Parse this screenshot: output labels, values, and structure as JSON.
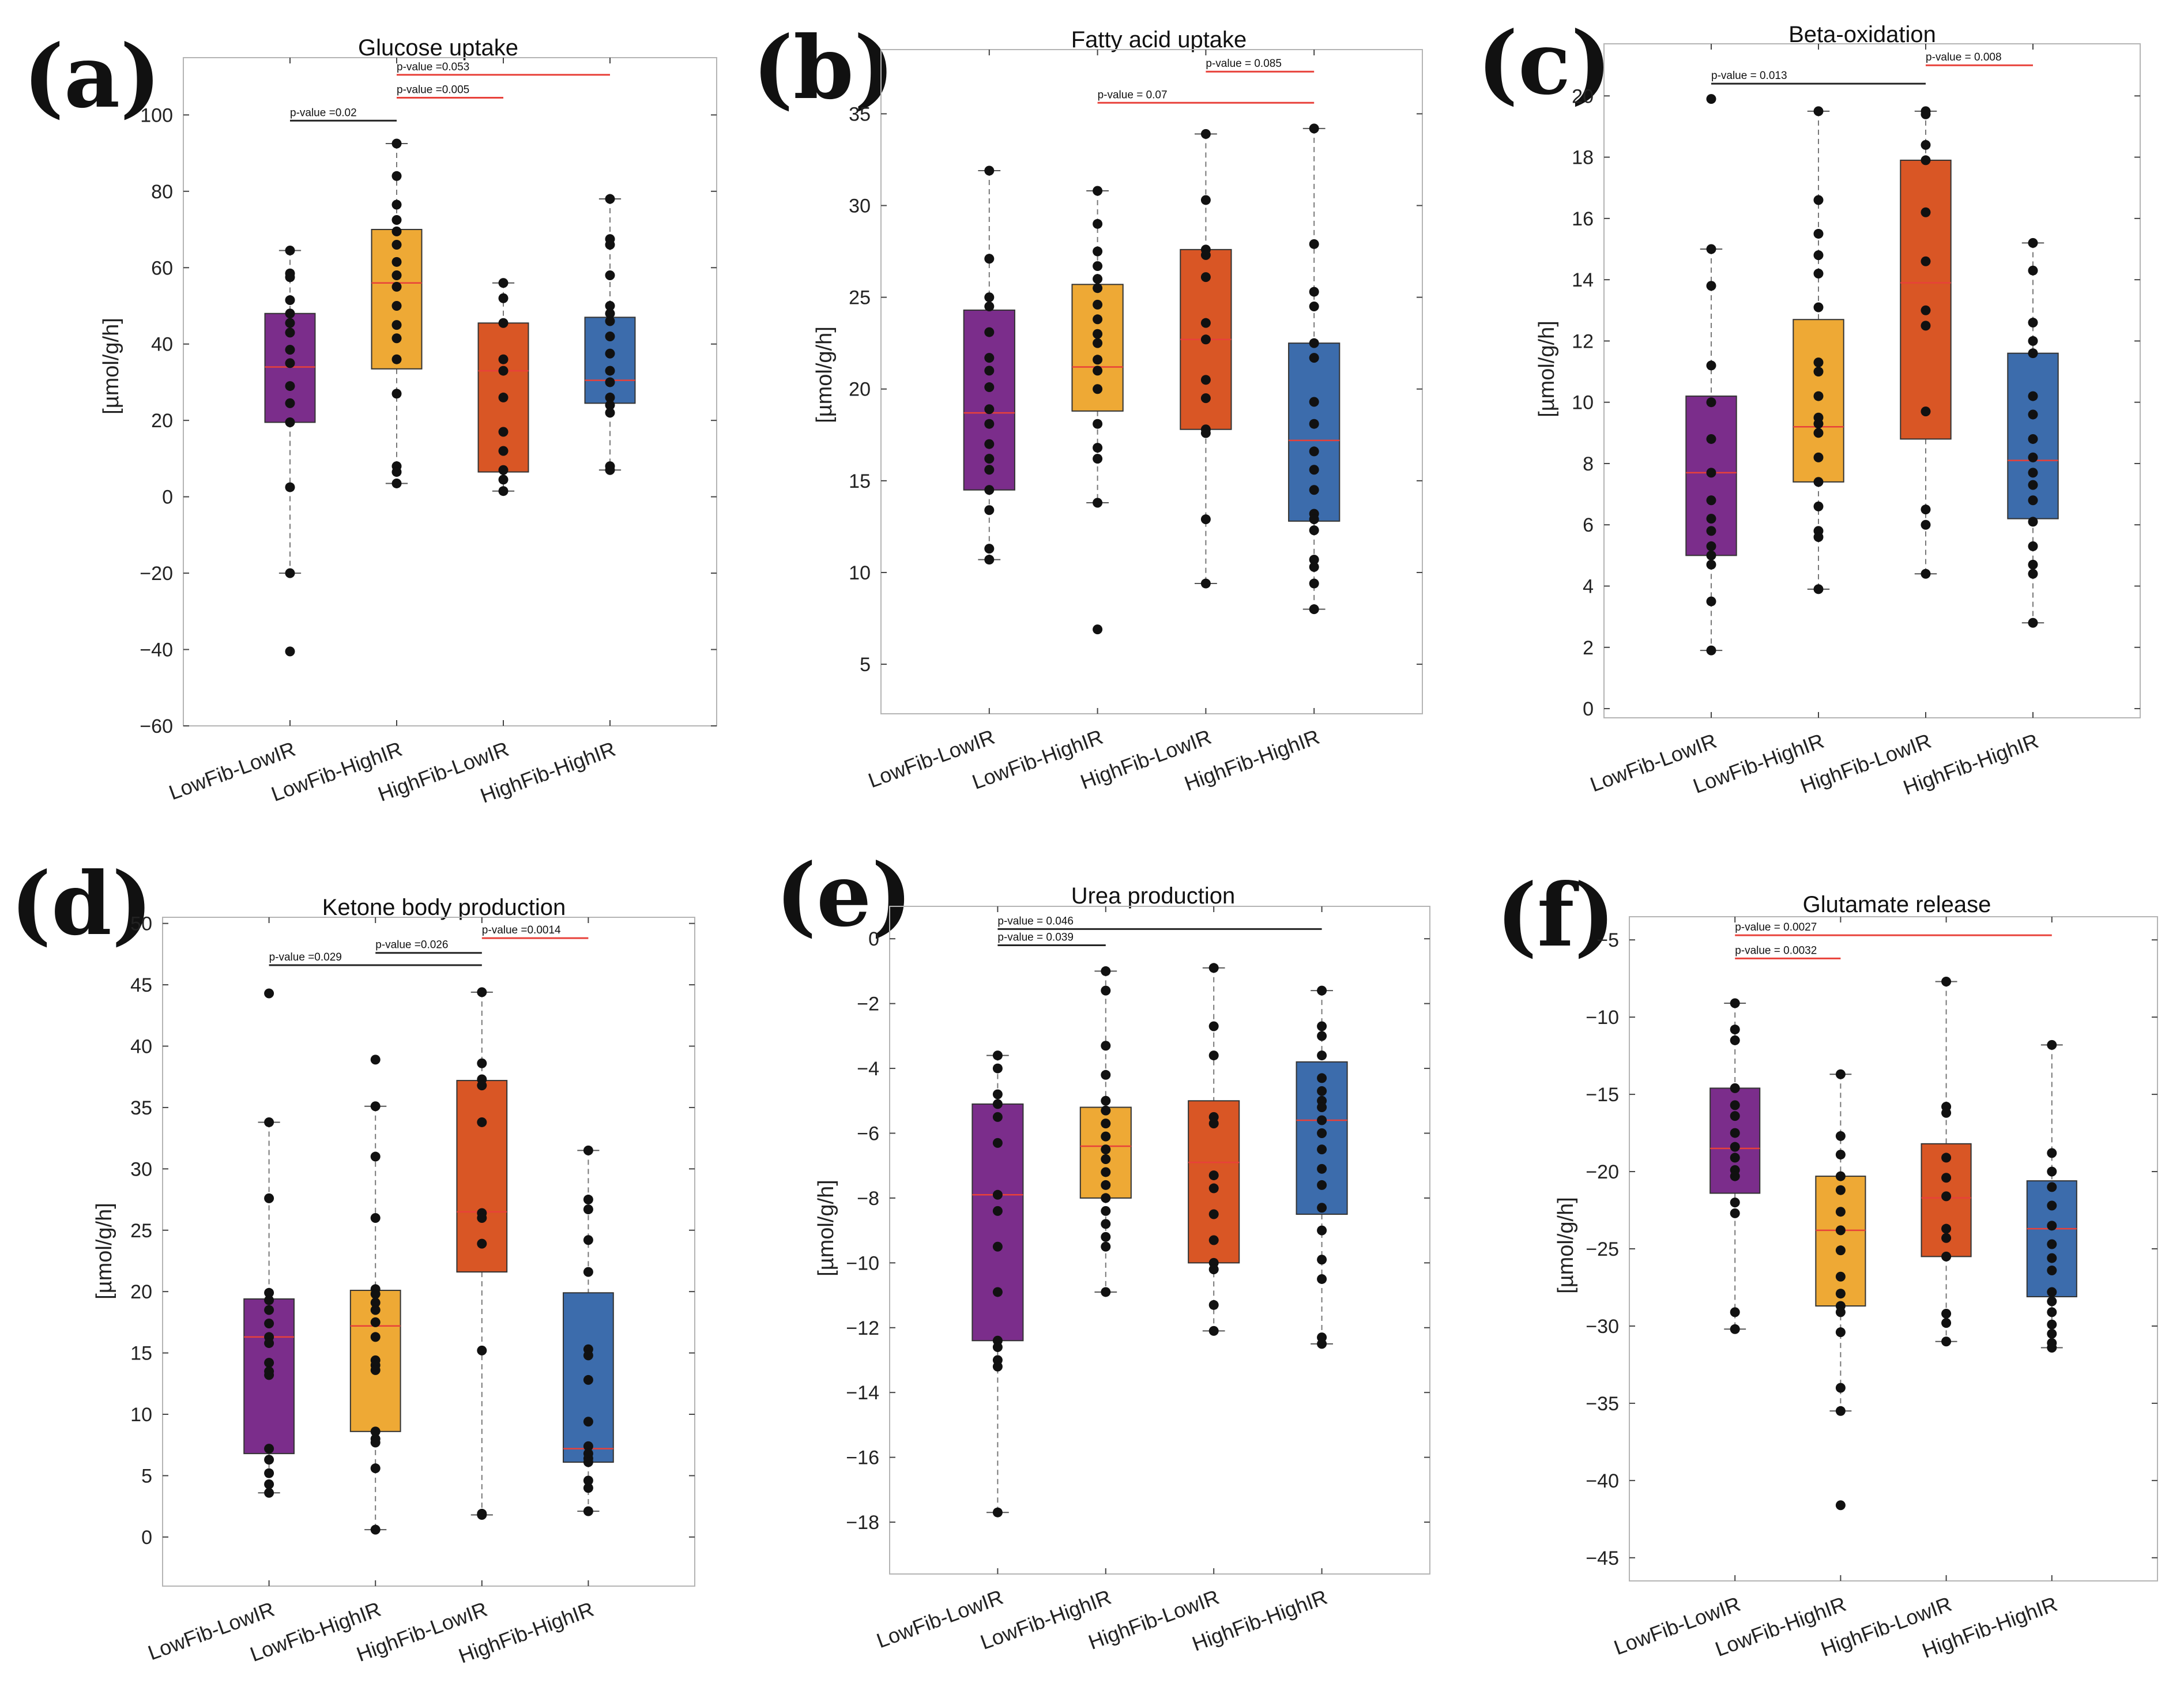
{
  "chart_data": [
    {
      "panel": "(a)",
      "type": "box",
      "title": "Glucose uptake",
      "ylabel": "[µmol/g/h]",
      "ylim": [
        -60,
        115
      ],
      "yticks": [
        -60,
        -40,
        -20,
        0,
        20,
        40,
        60,
        80,
        100
      ],
      "categories": [
        "LowFib-LowIR",
        "LowFib-HighIR",
        "HighFib-LowIR",
        "HighFib-HighIR"
      ],
      "boxes": [
        {
          "q1": 19.5,
          "median": 34,
          "q3": 48,
          "whisker_low": -20,
          "whisker_high": 64.5,
          "points": [
            64.5,
            58.5,
            57.5,
            51.5,
            48,
            45.5,
            43,
            38.5,
            35,
            29,
            24.5,
            19.5,
            2.5,
            -20,
            -40.5
          ]
        },
        {
          "q1": 33.5,
          "median": 56,
          "q3": 70,
          "whisker_low": 3.5,
          "whisker_high": 92.5,
          "points": [
            92.5,
            84,
            76.5,
            72.5,
            69.5,
            66,
            61.5,
            58,
            55,
            50,
            45,
            41.5,
            36,
            27,
            8,
            6.5,
            3.5
          ]
        },
        {
          "q1": 6.5,
          "median": 33,
          "q3": 45.5,
          "whisker_low": 1.5,
          "whisker_high": 56,
          "points": [
            56,
            52,
            45.5,
            36,
            33,
            26,
            17,
            12,
            7,
            4.5,
            1.5
          ]
        },
        {
          "q1": 24.5,
          "median": 30.5,
          "q3": 47,
          "whisker_low": 7,
          "whisker_high": 78,
          "points": [
            78,
            67.5,
            66,
            58,
            50,
            48,
            46,
            42,
            37.5,
            33,
            30,
            26,
            24,
            22,
            8,
            7
          ]
        }
      ],
      "comparisons": [
        {
          "label": "p-value =0.02",
          "from": 0,
          "to": 1,
          "y": 98.5,
          "color": "#222222"
        },
        {
          "label": "p-value =0.005",
          "from": 1,
          "to": 2,
          "y": 104.5,
          "color": "#e8413a"
        },
        {
          "label": "p-value =0.053",
          "from": 1,
          "to": 3,
          "y": 110.5,
          "color": "#e8413a"
        }
      ]
    },
    {
      "panel": "(b)",
      "type": "box",
      "title": "Fatty acid uptake",
      "ylabel": "[µmol/g/h]",
      "ylim": [
        2.3,
        38.5
      ],
      "yticks": [
        5,
        10,
        15,
        20,
        25,
        30,
        35
      ],
      "categories": [
        "LowFib-LowIR",
        "LowFib-HighIR",
        "HighFib-LowIR",
        "HighFib-HighIR"
      ],
      "boxes": [
        {
          "q1": 14.5,
          "median": 18.7,
          "q3": 24.3,
          "whisker_low": 10.7,
          "whisker_high": 31.9,
          "points": [
            31.9,
            27.1,
            25,
            24.5,
            23.1,
            21.7,
            21,
            20.1,
            18.9,
            18.1,
            17,
            16.2,
            15.6,
            14.5,
            13.4,
            11.3,
            10.7
          ]
        },
        {
          "q1": 18.8,
          "median": 21.2,
          "q3": 25.7,
          "whisker_low": 13.8,
          "whisker_high": 30.8,
          "points": [
            30.8,
            29,
            27.5,
            26.7,
            26,
            25.5,
            24.6,
            23.8,
            23,
            22.5,
            21.6,
            21,
            20,
            18.1,
            16.8,
            16.2,
            13.8,
            6.9
          ]
        },
        {
          "q1": 17.8,
          "median": 22.7,
          "q3": 27.6,
          "whisker_low": 9.4,
          "whisker_high": 33.9,
          "points": [
            33.9,
            30.3,
            27.6,
            27.3,
            26.1,
            23.6,
            22.7,
            20.5,
            19.5,
            17.8,
            17.6,
            12.9,
            9.4
          ]
        },
        {
          "q1": 12.8,
          "median": 17.2,
          "q3": 22.5,
          "whisker_low": 8,
          "whisker_high": 34.2,
          "points": [
            34.2,
            27.9,
            25.3,
            24.5,
            22.5,
            21.7,
            19.3,
            18.1,
            16.6,
            15.6,
            14.5,
            13.2,
            12.9,
            12.3,
            10.7,
            10.3,
            9.4,
            8
          ]
        }
      ],
      "comparisons": [
        {
          "label": "p-value = 0.07",
          "from": 1,
          "to": 3,
          "y": 35.6,
          "color": "#e8413a"
        },
        {
          "label": "p-value = 0.085",
          "from": 2,
          "to": 3,
          "y": 37.3,
          "color": "#e8413a"
        }
      ]
    },
    {
      "panel": "(c)",
      "type": "box",
      "title": "Beta-oxidation",
      "ylabel": "[µmol/g/h]",
      "ylim": [
        -0.3,
        21.7
      ],
      "yticks": [
        0,
        2,
        4,
        6,
        8,
        10,
        12,
        14,
        16,
        18,
        20
      ],
      "categories": [
        "LowFib-LowIR",
        "LowFib-HighIR",
        "HighFib-LowIR",
        "HighFib-HighIR"
      ],
      "boxes": [
        {
          "q1": 5,
          "median": 7.7,
          "q3": 10.2,
          "whisker_low": 1.9,
          "whisker_high": 15,
          "points": [
            19.9,
            15,
            13.8,
            11.2,
            10,
            8.8,
            7.7,
            6.8,
            6.2,
            5.8,
            5.3,
            5,
            4.7,
            3.5,
            1.9
          ]
        },
        {
          "q1": 7.4,
          "median": 9.2,
          "q3": 12.7,
          "whisker_low": 3.9,
          "whisker_high": 19.5,
          "points": [
            19.5,
            16.6,
            15.5,
            14.8,
            14.2,
            13.1,
            11.3,
            11,
            10.2,
            9.5,
            9.3,
            9,
            8.2,
            7.4,
            6.6,
            5.8,
            5.6,
            3.9
          ]
        },
        {
          "q1": 8.8,
          "median": 13.9,
          "q3": 17.9,
          "whisker_low": 4.4,
          "whisker_high": 19.5,
          "points": [
            19.5,
            19.4,
            18.4,
            17.9,
            16.2,
            14.6,
            13,
            12.5,
            9.7,
            6.5,
            6,
            4.4
          ]
        },
        {
          "q1": 6.2,
          "median": 8.1,
          "q3": 11.6,
          "whisker_low": 2.8,
          "whisker_high": 15.2,
          "points": [
            15.2,
            14.3,
            12.6,
            12,
            11.6,
            10.2,
            9.6,
            8.8,
            8.2,
            7.7,
            7.3,
            6.8,
            6.1,
            5.3,
            4.7,
            4.4,
            2.8
          ]
        }
      ],
      "comparisons": [
        {
          "label": "p-value = 0.013",
          "from": 0,
          "to": 2,
          "y": 20.4,
          "color": "#222222"
        },
        {
          "label": "p-value = 0.008",
          "from": 2,
          "to": 3,
          "y": 21,
          "color": "#e8413a"
        }
      ]
    },
    {
      "panel": "(d)",
      "type": "box",
      "title": "Ketone body production",
      "ylabel": "[µmol/g/h]",
      "ylim": [
        -4,
        50.5
      ],
      "yticks": [
        0,
        5,
        10,
        15,
        20,
        25,
        30,
        35,
        40,
        45,
        50
      ],
      "categories": [
        "LowFib-LowIR",
        "LowFib-HighIR",
        "HighFib-LowIR",
        "HighFib-HighIR"
      ],
      "boxes": [
        {
          "q1": 6.8,
          "median": 16.3,
          "q3": 19.4,
          "whisker_low": 3.6,
          "whisker_high": 33.8,
          "points": [
            44.3,
            33.8,
            27.6,
            19.9,
            19.3,
            18.5,
            17.4,
            16.3,
            15.8,
            14.2,
            13.5,
            13.2,
            7.2,
            6.3,
            5.2,
            4.3,
            3.6
          ]
        },
        {
          "q1": 8.6,
          "median": 17.2,
          "q3": 20.1,
          "whisker_low": 0.6,
          "whisker_high": 35.1,
          "points": [
            38.9,
            35.1,
            31,
            26,
            20.2,
            19.8,
            19.1,
            18.5,
            17.5,
            16.3,
            14.4,
            14,
            13.6,
            8.6,
            8,
            7.7,
            5.6,
            0.6
          ]
        },
        {
          "q1": 21.6,
          "median": 26.5,
          "q3": 37.2,
          "whisker_low": 1.8,
          "whisker_high": 44.4,
          "points": [
            44.4,
            38.6,
            37.3,
            36.8,
            33.8,
            26.4,
            26,
            23.9,
            15.2,
            1.9,
            1.8
          ]
        },
        {
          "q1": 6.1,
          "median": 7.2,
          "q3": 19.9,
          "whisker_low": 2.1,
          "whisker_high": 31.5,
          "points": [
            31.5,
            27.5,
            26.7,
            24.2,
            21.6,
            15.3,
            14.8,
            12.8,
            9.4,
            7.4,
            6.8,
            6.4,
            6.1,
            4.6,
            4,
            2.1
          ]
        }
      ],
      "comparisons": [
        {
          "label": "p-value =0.029",
          "from": 0,
          "to": 2,
          "y": 46.6,
          "color": "#222222"
        },
        {
          "label": "p-value =0.026",
          "from": 1,
          "to": 2,
          "y": 47.6,
          "color": "#222222"
        },
        {
          "label": "p-value =0.0014",
          "from": 2,
          "to": 3,
          "y": 48.8,
          "color": "#e8413a"
        }
      ]
    },
    {
      "panel": "(e)",
      "type": "box",
      "title": "Urea production",
      "ylabel": "[µmol/g/h]",
      "ylim": [
        -19.6,
        1.0
      ],
      "yticks": [
        -18,
        -16,
        -14,
        -12,
        -10,
        -8,
        -6,
        -4,
        -2,
        0
      ],
      "categories": [
        "LowFib-LowIR",
        "LowFib-HighIR",
        "HighFib-LowIR",
        "HighFib-HighIR"
      ],
      "boxes": [
        {
          "q1": -12.4,
          "median": -7.9,
          "q3": -5.1,
          "whisker_low": -17.7,
          "whisker_high": -3.6,
          "points": [
            -3.6,
            -4,
            -4.8,
            -5.1,
            -5.5,
            -6.3,
            -7.9,
            -8.4,
            -9.5,
            -10.9,
            -12.4,
            -12.6,
            -13,
            -13.2,
            -17.7
          ]
        },
        {
          "q1": -8,
          "median": -6.4,
          "q3": -5.2,
          "whisker_low": -10.9,
          "whisker_high": -1,
          "points": [
            -1,
            -1.6,
            -3.3,
            -4.2,
            -5,
            -5.3,
            -5.7,
            -6.1,
            -6.5,
            -6.8,
            -7.2,
            -7.6,
            -8,
            -8.4,
            -8.8,
            -9.2,
            -9.5,
            -10.9
          ]
        },
        {
          "q1": -10,
          "median": -6.9,
          "q3": -5,
          "whisker_low": -12.1,
          "whisker_high": -0.9,
          "points": [
            -0.9,
            -2.7,
            -3.6,
            -5.5,
            -5.7,
            -7.3,
            -7.7,
            -8.5,
            -9.3,
            -10,
            -10.2,
            -11.3,
            -12.1
          ]
        },
        {
          "q1": -8.5,
          "median": -5.6,
          "q3": -3.8,
          "whisker_low": -12.5,
          "whisker_high": -1.6,
          "points": [
            -1.6,
            -2.7,
            -3,
            -3.6,
            -4.3,
            -4.7,
            -5,
            -5.2,
            -5.6,
            -6,
            -6.5,
            -7.1,
            -7.6,
            -8.3,
            -9,
            -9.9,
            -10.5,
            -12.3,
            -12.5
          ]
        }
      ],
      "comparisons": [
        {
          "label": "p-value = 0.039",
          "from": 0,
          "to": 1,
          "y": -0.2,
          "color": "#222222"
        },
        {
          "label": "p-value = 0.046",
          "from": 0,
          "to": 3,
          "y": 0.3,
          "color": "#222222"
        }
      ]
    },
    {
      "panel": "(f)",
      "type": "box",
      "title": "Glutamate release",
      "ylabel": "[µmol/g/h]",
      "ylim": [
        -46.5,
        -3.5
      ],
      "yticks": [
        -45,
        -40,
        -35,
        -30,
        -25,
        -20,
        -15,
        -10,
        -5
      ],
      "categories": [
        "LowFib-LowIR",
        "LowFib-HighIR",
        "HighFib-LowIR",
        "HighFib-HighIR"
      ],
      "boxes": [
        {
          "q1": -21.4,
          "median": -18.5,
          "q3": -14.6,
          "whisker_low": -30.2,
          "whisker_high": -9.1,
          "points": [
            -9.1,
            -10.8,
            -11.5,
            -14.6,
            -15.7,
            -16.4,
            -17.5,
            -18.4,
            -19.1,
            -19.9,
            -20.3,
            -22,
            -22.7,
            -29.1,
            -30.2
          ]
        },
        {
          "q1": -28.7,
          "median": -23.8,
          "q3": -20.3,
          "whisker_low": -35.5,
          "whisker_high": -13.7,
          "points": [
            -13.7,
            -17.7,
            -18.9,
            -20.3,
            -21.2,
            -22.6,
            -23.8,
            -25.1,
            -26.8,
            -27.9,
            -28.7,
            -29.1,
            -30.4,
            -34,
            -35.5,
            -41.6
          ]
        },
        {
          "q1": -25.5,
          "median": -21.7,
          "q3": -18.2,
          "whisker_low": -31,
          "whisker_high": -7.7,
          "points": [
            -7.7,
            -15.8,
            -16.2,
            -19.1,
            -20.4,
            -21.6,
            -23.7,
            -24.3,
            -25.5,
            -29.2,
            -29.8,
            -31
          ]
        },
        {
          "q1": -28.1,
          "median": -23.7,
          "q3": -20.6,
          "whisker_low": -31.4,
          "whisker_high": -11.8,
          "points": [
            -11.8,
            -18.8,
            -20,
            -21,
            -22.2,
            -23.5,
            -24.7,
            -25.6,
            -26.4,
            -27.8,
            -28.4,
            -29.1,
            -29.9,
            -30.5,
            -31.1,
            -31.4
          ]
        }
      ],
      "comparisons": [
        {
          "label": "p-value = 0.0032",
          "from": 0,
          "to": 1,
          "y": -6.2,
          "color": "#e8413a"
        },
        {
          "label": "p-value = 0.0027",
          "from": 0,
          "to": 3,
          "y": -4.7,
          "color": "#e8413a"
        }
      ]
    }
  ],
  "colors": {
    "box_fills": [
      "#7b2d8b",
      "#eea935",
      "#d95625",
      "#3c6cac"
    ],
    "median": "#e8413a",
    "point": "#111111"
  }
}
